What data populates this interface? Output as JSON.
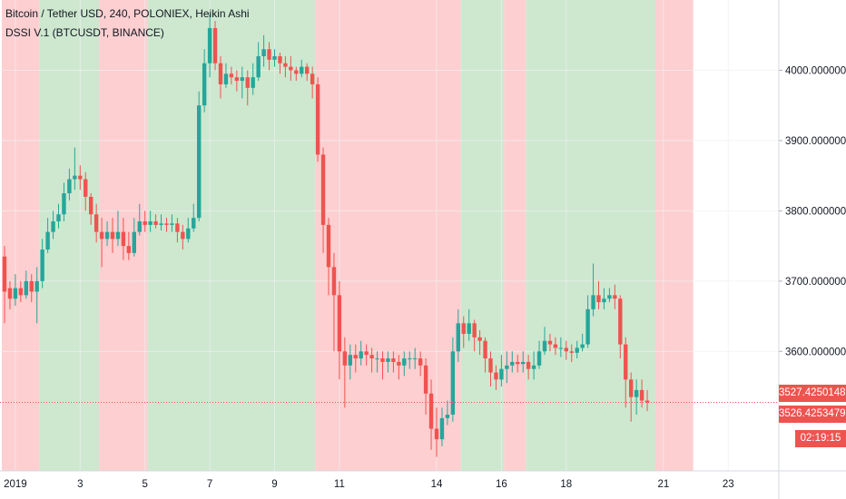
{
  "legend": {
    "title": "Bitcoin / Tether USD, 240, POLONIEX, Heikin Ashi",
    "indicator": "DSSI V.1 (BTCUSDT, BINANCE)"
  },
  "labels": {
    "current_price": "3527.42501487",
    "indicator_price": "3526.42534790",
    "countdown": "02:19:15"
  },
  "colors": {
    "up": "#26a69a",
    "down": "#ef5350",
    "bg_green": "#cde8cf",
    "bg_red": "#fdcfd0",
    "grid": "#eef0f3",
    "label_bg": "#ef5350"
  },
  "chart_data": {
    "type": "candlestick",
    "title": "Bitcoin / Tether USD, 240, POLONIEX, Heikin Ashi",
    "ylim": [
      3430,
      4100
    ],
    "y_ticks": [
      {
        "v": 4000,
        "label": "4000.00000000"
      },
      {
        "v": 3900,
        "label": "3900.00000000"
      },
      {
        "v": 3800,
        "label": "3800.00000000"
      },
      {
        "v": 3700,
        "label": "3700.00000000"
      },
      {
        "v": 3600,
        "label": "3600.00000000"
      }
    ],
    "x_ticks": [
      {
        "i": 2,
        "label": "2019"
      },
      {
        "i": 14,
        "label": "3"
      },
      {
        "i": 26,
        "label": "5"
      },
      {
        "i": 38,
        "label": "7"
      },
      {
        "i": 50,
        "label": "9"
      },
      {
        "i": 62,
        "label": "11"
      },
      {
        "i": 80,
        "label": "14"
      },
      {
        "i": 92,
        "label": "16"
      },
      {
        "i": 104,
        "label": "18"
      },
      {
        "i": 122,
        "label": "21"
      },
      {
        "i": 134,
        "label": "23"
      }
    ],
    "last_price": 3527.4,
    "background_bands": [
      {
        "from": 0,
        "to": 7,
        "color": "red"
      },
      {
        "from": 7,
        "to": 18,
        "color": "green"
      },
      {
        "from": 18,
        "to": 27,
        "color": "red"
      },
      {
        "from": 27,
        "to": 58,
        "color": "green"
      },
      {
        "from": 58,
        "to": 85,
        "color": "red"
      },
      {
        "from": 85,
        "to": 93,
        "color": "green"
      },
      {
        "from": 93,
        "to": 97,
        "color": "red"
      },
      {
        "from": 97,
        "to": 121,
        "color": "green"
      },
      {
        "from": 121,
        "to": 128,
        "color": "red"
      }
    ],
    "candles": [
      [
        3735,
        3685,
        3750,
        3640
      ],
      [
        3690,
        3675,
        3700,
        3660
      ],
      [
        3675,
        3690,
        3710,
        3665
      ],
      [
        3690,
        3680,
        3700,
        3670
      ],
      [
        3680,
        3700,
        3715,
        3675
      ],
      [
        3700,
        3685,
        3710,
        3670
      ],
      [
        3685,
        3700,
        3720,
        3640
      ],
      [
        3700,
        3745,
        3760,
        3690
      ],
      [
        3745,
        3770,
        3790,
        3740
      ],
      [
        3770,
        3785,
        3800,
        3760
      ],
      [
        3785,
        3795,
        3810,
        3775
      ],
      [
        3795,
        3825,
        3840,
        3785
      ],
      [
        3825,
        3845,
        3860,
        3815
      ],
      [
        3845,
        3850,
        3890,
        3830
      ],
      [
        3850,
        3845,
        3865,
        3830
      ],
      [
        3845,
        3820,
        3855,
        3800
      ],
      [
        3820,
        3795,
        3825,
        3780
      ],
      [
        3795,
        3770,
        3810,
        3755
      ],
      [
        3770,
        3760,
        3790,
        3720
      ],
      [
        3760,
        3770,
        3785,
        3750
      ],
      [
        3770,
        3760,
        3790,
        3740
      ],
      [
        3760,
        3770,
        3800,
        3750
      ],
      [
        3770,
        3750,
        3790,
        3730
      ],
      [
        3750,
        3740,
        3770,
        3730
      ],
      [
        3740,
        3770,
        3790,
        3735
      ],
      [
        3770,
        3785,
        3810,
        3765
      ],
      [
        3785,
        3780,
        3800,
        3770
      ],
      [
        3780,
        3785,
        3800,
        3770
      ],
      [
        3785,
        3780,
        3795,
        3775
      ],
      [
        3780,
        3782,
        3795,
        3772
      ],
      [
        3782,
        3780,
        3790,
        3770
      ],
      [
        3780,
        3782,
        3795,
        3770
      ],
      [
        3782,
        3770,
        3790,
        3755
      ],
      [
        3770,
        3760,
        3780,
        3745
      ],
      [
        3760,
        3775,
        3790,
        3755
      ],
      [
        3775,
        3790,
        3810,
        3770
      ],
      [
        3790,
        3950,
        3970,
        3785
      ],
      [
        3950,
        4010,
        4030,
        3940
      ],
      [
        4010,
        4060,
        4080,
        3990
      ],
      [
        4060,
        4010,
        4070,
        4000
      ],
      [
        4010,
        3980,
        4020,
        3960
      ],
      [
        3980,
        3995,
        4010,
        3975
      ],
      [
        3995,
        3990,
        4005,
        3980
      ],
      [
        3990,
        3985,
        4000,
        3970
      ],
      [
        3985,
        3990,
        4005,
        3960
      ],
      [
        3990,
        3975,
        4000,
        3950
      ],
      [
        3975,
        3990,
        4010,
        3965
      ],
      [
        3990,
        4020,
        4040,
        3985
      ],
      [
        4020,
        4030,
        4050,
        4005
      ],
      [
        4030,
        4015,
        4040,
        4000
      ],
      [
        4015,
        4020,
        4030,
        4005
      ],
      [
        4020,
        4010,
        4025,
        3995
      ],
      [
        4010,
        4005,
        4020,
        3990
      ],
      [
        4005,
        4000,
        4020,
        3985
      ],
      [
        4000,
        3995,
        4005,
        3985
      ],
      [
        3995,
        4005,
        4015,
        3990
      ],
      [
        4005,
        3995,
        4010,
        3985
      ],
      [
        3995,
        3980,
        4005,
        3960
      ],
      [
        3980,
        3880,
        3990,
        3870
      ],
      [
        3880,
        3780,
        3890,
        3740
      ],
      [
        3780,
        3720,
        3790,
        3680
      ],
      [
        3720,
        3680,
        3740,
        3600
      ],
      [
        3680,
        3600,
        3700,
        3560
      ],
      [
        3600,
        3580,
        3620,
        3520
      ],
      [
        3580,
        3595,
        3610,
        3560
      ],
      [
        3595,
        3590,
        3610,
        3570
      ],
      [
        3590,
        3600,
        3615,
        3580
      ],
      [
        3600,
        3595,
        3610,
        3580
      ],
      [
        3595,
        3590,
        3605,
        3570
      ],
      [
        3590,
        3590,
        3600,
        3570
      ],
      [
        3590,
        3585,
        3600,
        3560
      ],
      [
        3585,
        3590,
        3600,
        3570
      ],
      [
        3590,
        3585,
        3600,
        3570
      ],
      [
        3585,
        3580,
        3595,
        3560
      ],
      [
        3580,
        3590,
        3600,
        3565
      ],
      [
        3590,
        3590,
        3600,
        3575
      ],
      [
        3590,
        3590,
        3605,
        3575
      ],
      [
        3590,
        3580,
        3600,
        3565
      ],
      [
        3580,
        3540,
        3590,
        3510
      ],
      [
        3540,
        3490,
        3560,
        3460
      ],
      [
        3490,
        3475,
        3520,
        3450
      ],
      [
        3475,
        3505,
        3520,
        3465
      ],
      [
        3505,
        3510,
        3530,
        3495
      ],
      [
        3510,
        3600,
        3620,
        3500
      ],
      [
        3600,
        3640,
        3660,
        3585
      ],
      [
        3640,
        3625,
        3650,
        3605
      ],
      [
        3625,
        3640,
        3660,
        3615
      ],
      [
        3640,
        3620,
        3645,
        3600
      ],
      [
        3620,
        3615,
        3630,
        3595
      ],
      [
        3615,
        3590,
        3620,
        3570
      ],
      [
        3590,
        3570,
        3600,
        3550
      ],
      [
        3570,
        3560,
        3580,
        3545
      ],
      [
        3560,
        3575,
        3595,
        3550
      ],
      [
        3575,
        3580,
        3600,
        3555
      ],
      [
        3580,
        3585,
        3600,
        3570
      ],
      [
        3585,
        3582,
        3595,
        3570
      ],
      [
        3582,
        3585,
        3600,
        3570
      ],
      [
        3585,
        3575,
        3595,
        3560
      ],
      [
        3575,
        3580,
        3600,
        3560
      ],
      [
        3580,
        3600,
        3615,
        3575
      ],
      [
        3600,
        3615,
        3635,
        3595
      ],
      [
        3615,
        3610,
        3625,
        3600
      ],
      [
        3610,
        3605,
        3620,
        3595
      ],
      [
        3605,
        3605,
        3620,
        3592
      ],
      [
        3605,
        3600,
        3615,
        3588
      ],
      [
        3600,
        3598,
        3610,
        3585
      ],
      [
        3598,
        3605,
        3615,
        3590
      ],
      [
        3605,
        3610,
        3625,
        3600
      ],
      [
        3610,
        3660,
        3680,
        3605
      ],
      [
        3660,
        3680,
        3725,
        3650
      ],
      [
        3680,
        3670,
        3700,
        3660
      ],
      [
        3670,
        3675,
        3690,
        3660
      ],
      [
        3675,
        3680,
        3690,
        3670
      ],
      [
        3680,
        3675,
        3695,
        3660
      ],
      [
        3675,
        3610,
        3680,
        3590
      ],
      [
        3610,
        3560,
        3620,
        3520
      ],
      [
        3560,
        3535,
        3570,
        3500
      ],
      [
        3535,
        3545,
        3560,
        3510
      ],
      [
        3545,
        3530,
        3560,
        3520
      ],
      [
        3530,
        3527.4,
        3545,
        3515
      ]
    ]
  }
}
